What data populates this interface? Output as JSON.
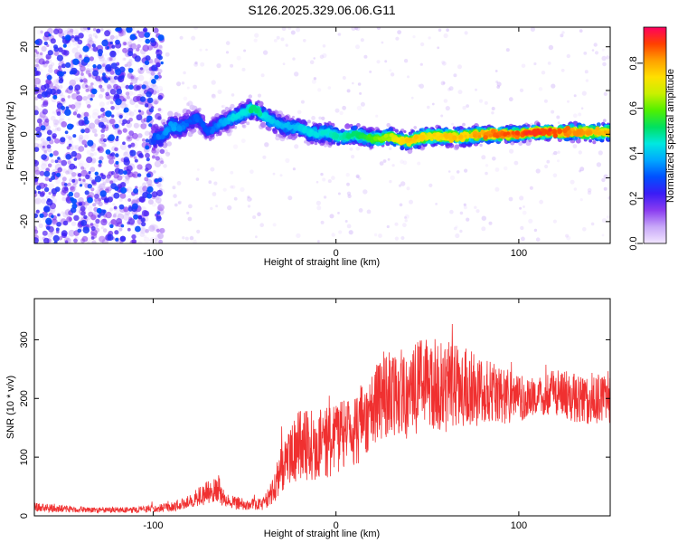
{
  "figure_title": "S126.2025.329.06.06.G11",
  "chart_data": [
    {
      "type": "heatmap",
      "title": "",
      "xlabel": "Height of straight line (km)",
      "ylabel": "Frequency (Hz)",
      "xlim": [
        -165,
        150
      ],
      "ylim": [
        -25,
        24.5
      ],
      "x_ticks": [
        -100,
        0,
        100
      ],
      "y_ticks": [
        -20,
        -10,
        0,
        10,
        20
      ],
      "colorbar": {
        "label": "Normalized spectral amplitude",
        "range": [
          0,
          0.96
        ],
        "ticks": [
          0.0,
          0.2,
          0.4,
          0.6,
          0.8
        ],
        "colors": [
          "#f2e6ff",
          "#c8a8f8",
          "#8a3cf0",
          "#3a1cf6",
          "#0050ff",
          "#00a8ff",
          "#00e8e0",
          "#00e060",
          "#50f000",
          "#c8f000",
          "#ffe000",
          "#ffa000",
          "#ff4000",
          "#ff0060"
        ]
      },
      "ridge": {
        "x": [
          -100,
          -95,
          -90,
          -85,
          -80,
          -75,
          -70,
          -65,
          -60,
          -55,
          -50,
          -45,
          -40,
          -35,
          -30,
          -25,
          -20,
          -15,
          -10,
          -5,
          0,
          5,
          10,
          15,
          20,
          25,
          30,
          35,
          40,
          45,
          50,
          60,
          70,
          80,
          90,
          100,
          110,
          120,
          130,
          140,
          150
        ],
        "frequency": [
          -1,
          -0.5,
          2,
          1.5,
          3,
          3.5,
          0.5,
          2,
          3,
          4,
          5,
          6,
          4.5,
          3,
          2,
          1.5,
          1.5,
          0.5,
          0,
          0.5,
          -0.5,
          -0.5,
          0,
          -0.5,
          -1,
          -1,
          -0.5,
          -1.5,
          -1.5,
          -1,
          -0.5,
          -0.5,
          -0.5,
          0,
          0,
          0,
          0.5,
          0.5,
          0.5,
          0.5,
          0.5
        ],
        "amplitude": [
          0.3,
          0.35,
          0.38,
          0.35,
          0.3,
          0.32,
          0.3,
          0.35,
          0.4,
          0.45,
          0.45,
          0.55,
          0.45,
          0.42,
          0.4,
          0.4,
          0.42,
          0.44,
          0.45,
          0.46,
          0.48,
          0.5,
          0.52,
          0.55,
          0.6,
          0.65,
          0.7,
          0.75,
          0.78,
          0.8,
          0.75,
          0.78,
          0.8,
          0.85,
          0.88,
          0.9,
          0.94,
          0.9,
          0.85,
          0.82,
          0.8
        ],
        "spread_hz": [
          4,
          3.5,
          3.5,
          3.5,
          3.5,
          3,
          3,
          3,
          3,
          3,
          3,
          3,
          3,
          3,
          3,
          3,
          3,
          3,
          3,
          3,
          3,
          3,
          3,
          2.5,
          2.5,
          2.5,
          2.5,
          2.5,
          2.5,
          2.5,
          2.5,
          2.5,
          2.5,
          2.2,
          2.2,
          2,
          2,
          2,
          2.2,
          2.5,
          2.5
        ]
      },
      "noise_region": {
        "x_range": [
          -165,
          -95
        ],
        "frequency_range": [
          -25,
          24.5
        ],
        "amplitude_range": [
          0.0,
          0.3
        ]
      }
    },
    {
      "type": "line",
      "title": "",
      "xlabel": "Height of straight line (km)",
      "ylabel": "SNR (10 * v/v)",
      "xlim": [
        -165,
        150
      ],
      "ylim": [
        0,
        370
      ],
      "x_ticks": [
        -100,
        0,
        100
      ],
      "y_ticks": [
        0,
        100,
        200,
        300
      ],
      "line_color": "#f03030",
      "series": [
        {
          "x": [
            -165,
            -150,
            -130,
            -110,
            -90,
            -80,
            -70,
            -65,
            -60,
            -50,
            -40,
            -35,
            -30,
            -25,
            -20,
            -10,
            0,
            10,
            20,
            25,
            30,
            40,
            50,
            60,
            70,
            80,
            90,
            100,
            110,
            120,
            130,
            140,
            150
          ],
          "y": [
            15,
            12,
            10,
            10,
            15,
            25,
            40,
            50,
            25,
            20,
            20,
            40,
            80,
            100,
            120,
            120,
            130,
            150,
            170,
            200,
            200,
            210,
            230,
            215,
            220,
            210,
            205,
            200,
            200,
            210,
            205,
            200,
            200
          ],
          "noise_amplitude": [
            8,
            6,
            5,
            5,
            8,
            12,
            20,
            25,
            15,
            10,
            10,
            25,
            40,
            50,
            60,
            60,
            60,
            65,
            70,
            80,
            80,
            80,
            80,
            75,
            70,
            60,
            50,
            40,
            35,
            40,
            45,
            45,
            45
          ]
        }
      ]
    }
  ]
}
